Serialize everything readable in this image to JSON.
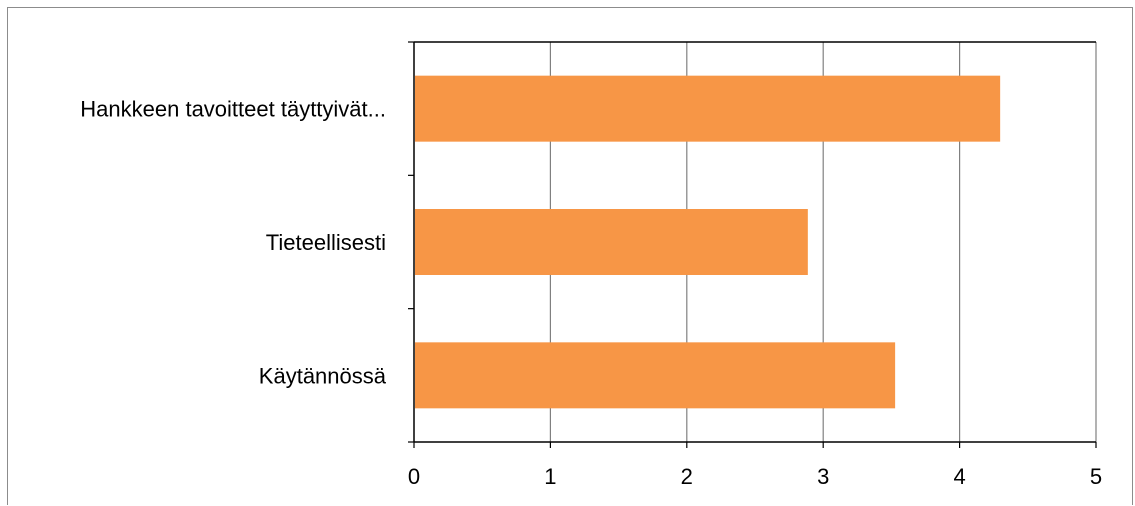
{
  "chart_data": {
    "type": "bar",
    "orientation": "horizontal",
    "categories": [
      "Hankkeen tavoitteet täyttyivät...",
      "Tieteellisesti",
      "Käytännössä"
    ],
    "values": [
      4.29,
      2.88,
      3.52
    ],
    "xlim": [
      0,
      5
    ],
    "ticks": [
      "0",
      "1",
      "2",
      "3",
      "4",
      "5"
    ],
    "title": "",
    "xlabel": "",
    "ylabel": "",
    "grid": "vertical",
    "legend": "none",
    "bar_color": "#f79646",
    "grid_color": "#808080",
    "axis_color": "#000000"
  }
}
